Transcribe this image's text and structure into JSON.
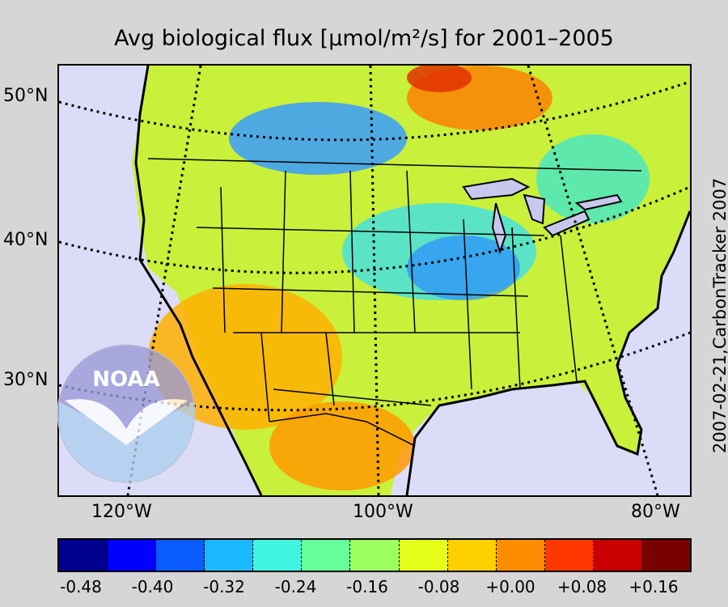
{
  "title": "Avg biological flux [µmol/m²/s] for 2001–2005",
  "side_label": "2007-02-21,CarbonTracker 2007",
  "latitude_labels": [
    "50°N",
    "40°N",
    "30°N"
  ],
  "longitude_labels": [
    "120°W",
    "100°W",
    "80°W"
  ],
  "logo_text": "NOAA",
  "colorbar": {
    "ticks": [
      "-0.48",
      "-0.40",
      "-0.32",
      "-0.24",
      "-0.16",
      "-0.08",
      "+0.00",
      "+0.08",
      "+0.16"
    ],
    "colors": [
      "#00008f",
      "#0000ff",
      "#0a5cff",
      "#1ab8ff",
      "#3ff5e0",
      "#64ff9b",
      "#9dff5f",
      "#e6ff1a",
      "#ffd000",
      "#ff8c00",
      "#ff3800",
      "#c80000",
      "#7a0000"
    ]
  }
}
